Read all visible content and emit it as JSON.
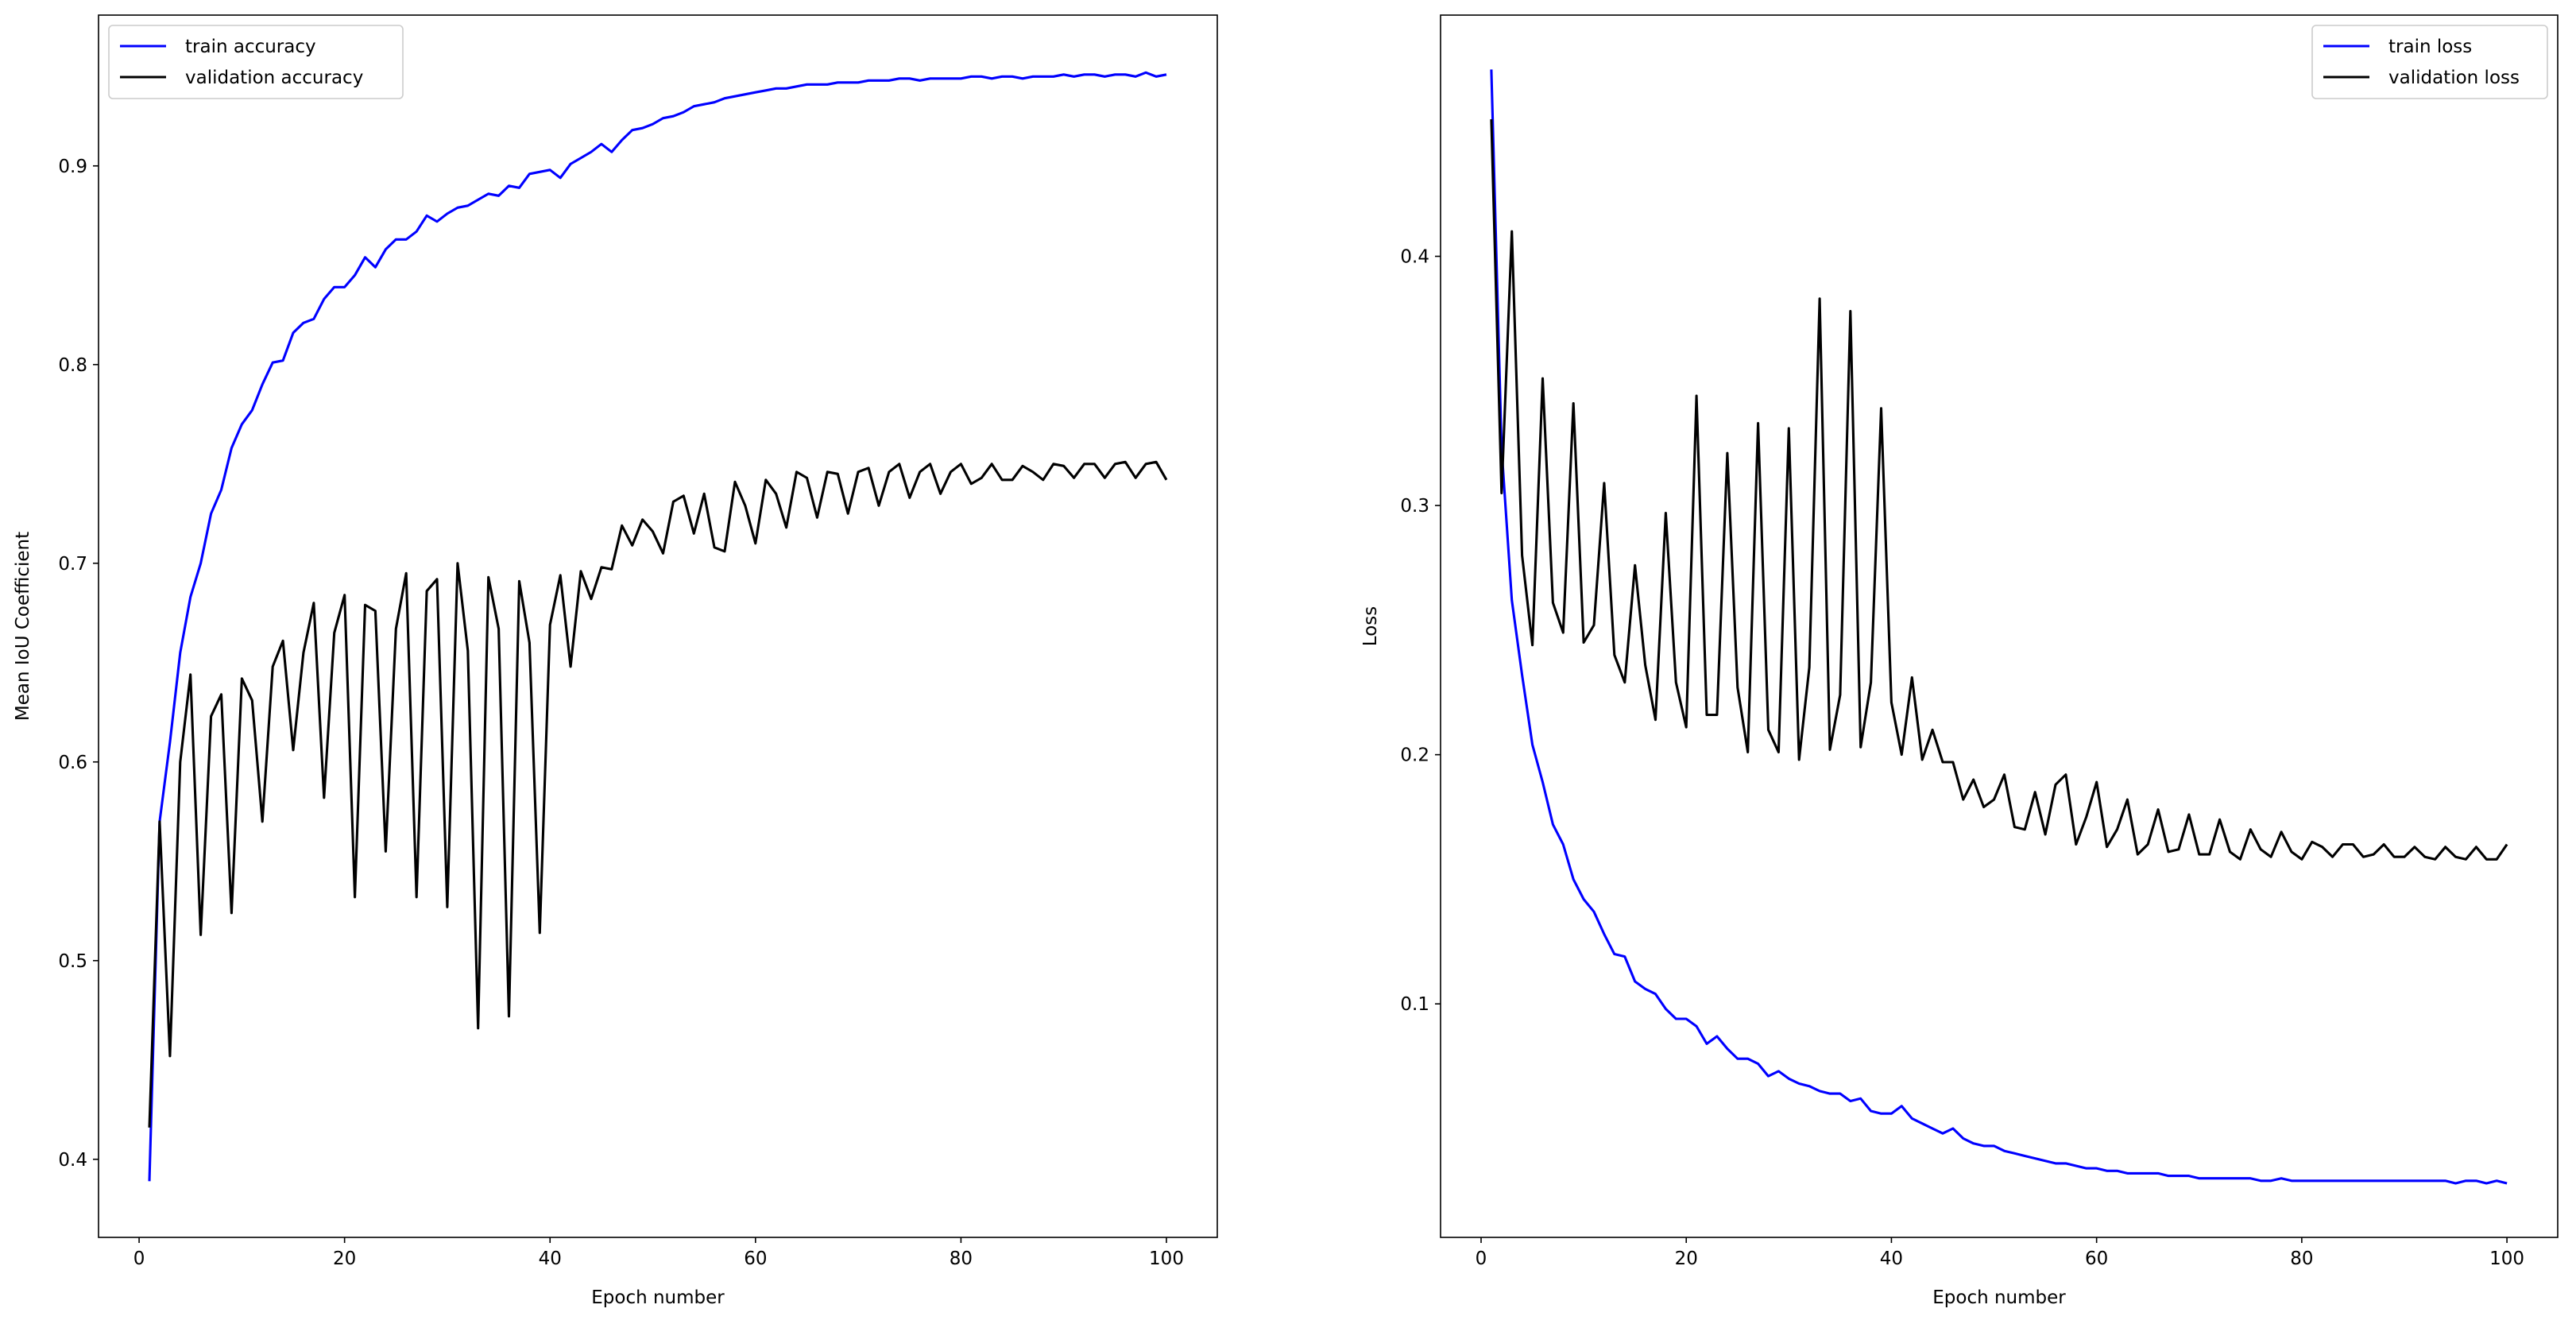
{
  "chart_data": [
    {
      "type": "line",
      "title": "",
      "xlabel": "Epoch number",
      "ylabel": "Mean IoU Coefficient",
      "xlim": [
        -3.95,
        104.95
      ],
      "ylim": [
        0.3607,
        0.9759
      ],
      "xticks": [
        0,
        20,
        40,
        60,
        80,
        100
      ],
      "yticks": [
        0.4,
        0.5,
        0.6,
        0.7,
        0.8,
        0.9
      ],
      "grid": false,
      "legend": "top-left",
      "x_start": 1,
      "series": [
        {
          "name": "train accuracy",
          "color": "#0000ff",
          "values": [
            0.389,
            0.57,
            0.61,
            0.655,
            0.683,
            0.7,
            0.725,
            0.737,
            0.758,
            0.77,
            0.777,
            0.79,
            0.801,
            0.802,
            0.816,
            0.821,
            0.823,
            0.833,
            0.839,
            0.839,
            0.845,
            0.854,
            0.849,
            0.858,
            0.863,
            0.863,
            0.867,
            0.875,
            0.872,
            0.876,
            0.879,
            0.88,
            0.883,
            0.886,
            0.885,
            0.89,
            0.889,
            0.896,
            0.897,
            0.898,
            0.894,
            0.901,
            0.904,
            0.907,
            0.911,
            0.907,
            0.913,
            0.918,
            0.919,
            0.921,
            0.924,
            0.925,
            0.927,
            0.93,
            0.931,
            0.932,
            0.934,
            0.935,
            0.936,
            0.937,
            0.938,
            0.939,
            0.939,
            0.94,
            0.941,
            0.941,
            0.941,
            0.942,
            0.942,
            0.942,
            0.943,
            0.943,
            0.943,
            0.944,
            0.944,
            0.943,
            0.944,
            0.944,
            0.944,
            0.944,
            0.945,
            0.945,
            0.944,
            0.945,
            0.945,
            0.944,
            0.945,
            0.945,
            0.945,
            0.946,
            0.945,
            0.946,
            0.946,
            0.945,
            0.946,
            0.946,
            0.945,
            0.947,
            0.945,
            0.946
          ]
        },
        {
          "name": "validation accuracy",
          "color": "#000000",
          "values": [
            0.416,
            0.57,
            0.452,
            0.6,
            0.644,
            0.513,
            0.623,
            0.634,
            0.524,
            0.642,
            0.631,
            0.57,
            0.648,
            0.661,
            0.606,
            0.655,
            0.68,
            0.582,
            0.665,
            0.684,
            0.532,
            0.679,
            0.676,
            0.555,
            0.667,
            0.695,
            0.532,
            0.686,
            0.692,
            0.527,
            0.7,
            0.656,
            0.466,
            0.693,
            0.667,
            0.472,
            0.691,
            0.66,
            0.514,
            0.669,
            0.694,
            0.648,
            0.696,
            0.682,
            0.698,
            0.697,
            0.719,
            0.709,
            0.722,
            0.716,
            0.705,
            0.731,
            0.734,
            0.715,
            0.735,
            0.708,
            0.706,
            0.741,
            0.729,
            0.71,
            0.742,
            0.735,
            0.718,
            0.746,
            0.743,
            0.723,
            0.746,
            0.745,
            0.725,
            0.746,
            0.748,
            0.729,
            0.746,
            0.75,
            0.733,
            0.746,
            0.75,
            0.735,
            0.746,
            0.75,
            0.74,
            0.743,
            0.75,
            0.742,
            0.742,
            0.749,
            0.746,
            0.742,
            0.75,
            0.749,
            0.743,
            0.75,
            0.75,
            0.743,
            0.75,
            0.751,
            0.743,
            0.75,
            0.751,
            0.742
          ]
        }
      ]
    },
    {
      "type": "line",
      "title": "",
      "xlabel": "Epoch number",
      "ylabel": "Loss",
      "xlim": [
        -3.95,
        104.95
      ],
      "ylim": [
        0.0063,
        0.4968
      ],
      "xticks": [
        0,
        20,
        40,
        60,
        80,
        100
      ],
      "yticks": [
        0.1,
        0.2,
        0.3,
        0.4
      ],
      "grid": false,
      "legend": "top-right",
      "x_start": 1,
      "series": [
        {
          "name": "train loss",
          "color": "#0000ff",
          "values": [
            0.475,
            0.323,
            0.262,
            0.232,
            0.204,
            0.189,
            0.172,
            0.164,
            0.15,
            0.142,
            0.137,
            0.128,
            0.12,
            0.119,
            0.109,
            0.106,
            0.104,
            0.098,
            0.094,
            0.094,
            0.091,
            0.084,
            0.087,
            0.082,
            0.078,
            0.078,
            0.076,
            0.071,
            0.073,
            0.07,
            0.068,
            0.067,
            0.065,
            0.064,
            0.064,
            0.061,
            0.062,
            0.057,
            0.056,
            0.056,
            0.059,
            0.054,
            0.052,
            0.05,
            0.048,
            0.05,
            0.046,
            0.044,
            0.043,
            0.043,
            0.041,
            0.04,
            0.039,
            0.038,
            0.037,
            0.036,
            0.036,
            0.035,
            0.034,
            0.034,
            0.033,
            0.033,
            0.032,
            0.032,
            0.032,
            0.032,
            0.031,
            0.031,
            0.031,
            0.03,
            0.03,
            0.03,
            0.03,
            0.03,
            0.03,
            0.029,
            0.029,
            0.03,
            0.029,
            0.029,
            0.029,
            0.029,
            0.029,
            0.029,
            0.029,
            0.029,
            0.029,
            0.029,
            0.029,
            0.029,
            0.029,
            0.029,
            0.029,
            0.029,
            0.028,
            0.029,
            0.029,
            0.028,
            0.029,
            0.028
          ]
        },
        {
          "name": "validation loss",
          "color": "#000000",
          "values": [
            0.455,
            0.305,
            0.41,
            0.28,
            0.244,
            0.351,
            0.261,
            0.249,
            0.341,
            0.245,
            0.252,
            0.309,
            0.24,
            0.229,
            0.276,
            0.236,
            0.214,
            0.297,
            0.229,
            0.211,
            0.344,
            0.216,
            0.216,
            0.321,
            0.227,
            0.201,
            0.333,
            0.21,
            0.201,
            0.331,
            0.198,
            0.235,
            0.383,
            0.202,
            0.224,
            0.378,
            0.203,
            0.229,
            0.339,
            0.221,
            0.2,
            0.231,
            0.198,
            0.21,
            0.197,
            0.197,
            0.182,
            0.19,
            0.179,
            0.182,
            0.192,
            0.171,
            0.17,
            0.185,
            0.168,
            0.188,
            0.192,
            0.164,
            0.175,
            0.189,
            0.163,
            0.17,
            0.182,
            0.16,
            0.164,
            0.178,
            0.161,
            0.162,
            0.176,
            0.16,
            0.16,
            0.174,
            0.161,
            0.158,
            0.17,
            0.162,
            0.159,
            0.169,
            0.161,
            0.158,
            0.165,
            0.163,
            0.159,
            0.164,
            0.164,
            0.159,
            0.16,
            0.164,
            0.159,
            0.159,
            0.163,
            0.159,
            0.158,
            0.163,
            0.159,
            0.158,
            0.163,
            0.158,
            0.158,
            0.164
          ]
        }
      ]
    }
  ]
}
